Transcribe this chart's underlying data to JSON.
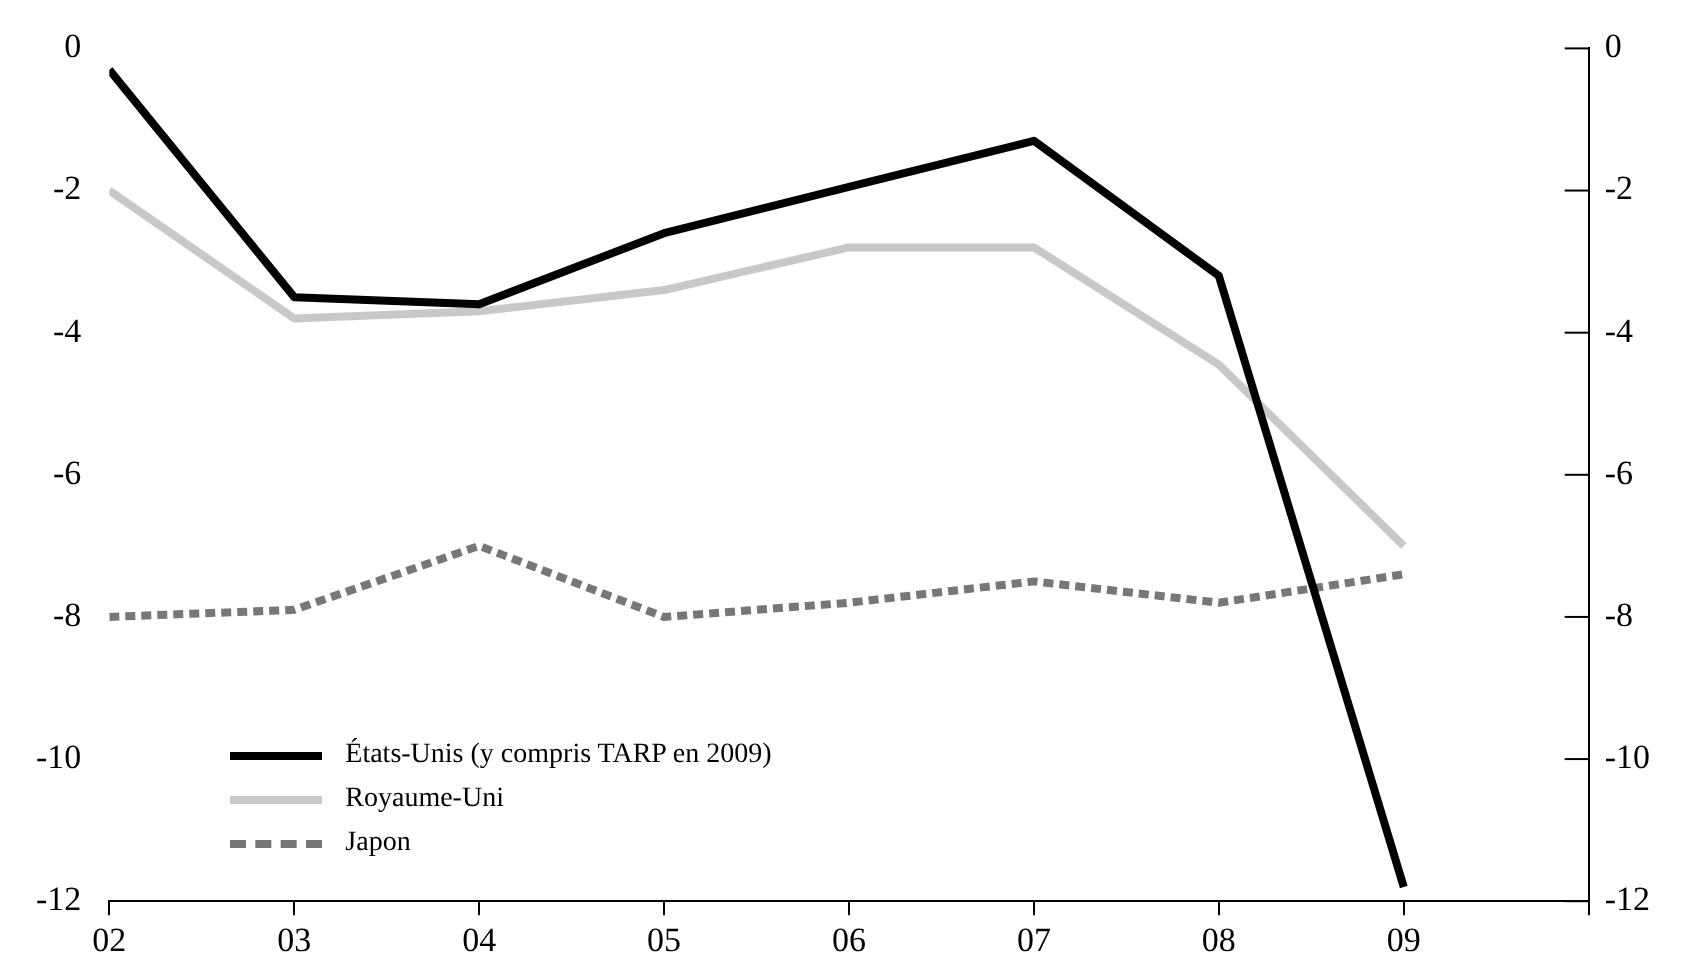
{
  "chart_data": {
    "type": "line",
    "x": [
      2002,
      2003,
      2004,
      2005,
      2006,
      2007,
      2008,
      2009
    ],
    "series": [
      {
        "name": "États-Unis (y compris TARP en 2009)",
        "color": "#000000",
        "values": [
          -0.3,
          -3.5,
          -3.6,
          -2.6,
          -1.95,
          -1.3,
          -3.2,
          -11.8
        ],
        "line_style": "solid"
      },
      {
        "name": "Royaume-Uni",
        "color": "#c8c8c8",
        "values": [
          -2.0,
          -3.8,
          -3.7,
          -3.4,
          -2.8,
          -2.8,
          -4.45,
          -7.0
        ],
        "line_style": "solid"
      },
      {
        "name": "Japon",
        "color": "#777777",
        "values": [
          -8.0,
          -7.9,
          -7.0,
          -8.0,
          -7.8,
          -7.5,
          -7.8,
          -7.4
        ],
        "line_style": "dashed"
      }
    ],
    "xlim": [
      2002,
      2010
    ],
    "xticks": [
      {
        "value": 2002,
        "label": "02"
      },
      {
        "value": 2003,
        "label": "03"
      },
      {
        "value": 2004,
        "label": "04"
      },
      {
        "value": 2005,
        "label": "05"
      },
      {
        "value": 2006,
        "label": "06"
      },
      {
        "value": 2007,
        "label": "07"
      },
      {
        "value": 2008,
        "label": "08"
      },
      {
        "value": 2009,
        "label": "09"
      },
      {
        "value": 2010,
        "label": null
      }
    ],
    "ylim": [
      -12,
      0
    ],
    "yticks": [
      -12,
      -10,
      -8,
      -6,
      -4,
      -2,
      0
    ],
    "y2lim": [
      -12,
      0
    ],
    "y2ticks": [
      -12,
      -10,
      -8,
      -6,
      -4,
      -2,
      0
    ],
    "grid": false,
    "legend": "bottom left",
    "marker": "none"
  }
}
